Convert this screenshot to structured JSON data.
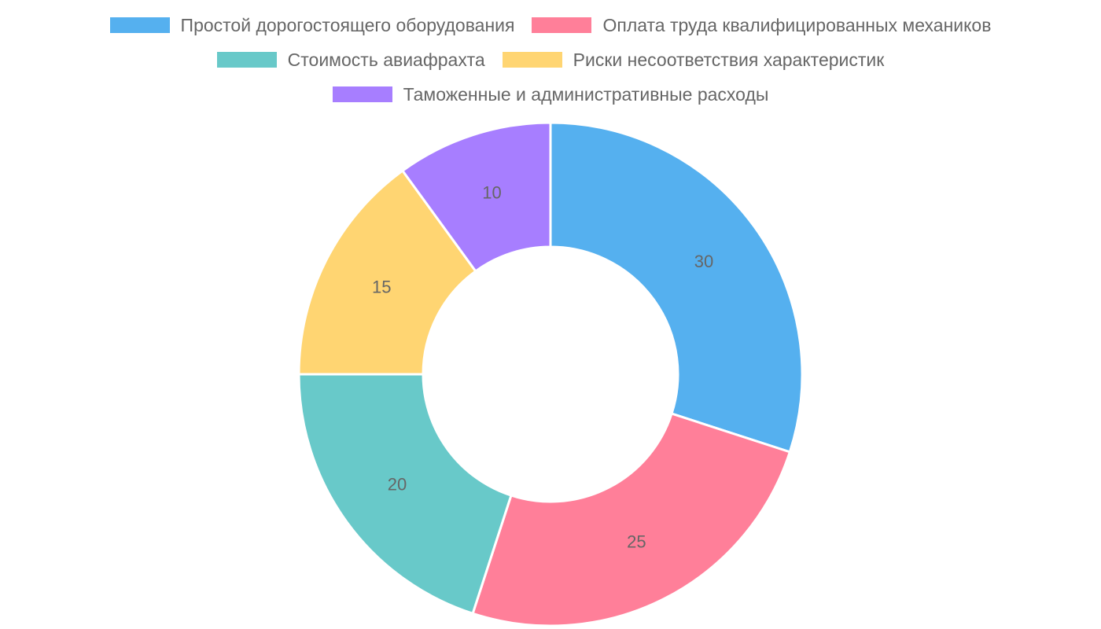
{
  "chart_data": {
    "type": "doughnut",
    "categories": [
      "Простой дорогостоящего оборудования",
      "Оплата труда квалифицированных механиков",
      "Стоимость авиафрахта",
      "Риски несоответствия характеристик",
      "Таможенные и административные расходы"
    ],
    "values": [
      30,
      25,
      20,
      15,
      10
    ],
    "colors": [
      "#55b0ef",
      "#ff7f99",
      "#68c9c9",
      "#ffd572",
      "#a77eff"
    ],
    "legend": "top"
  }
}
